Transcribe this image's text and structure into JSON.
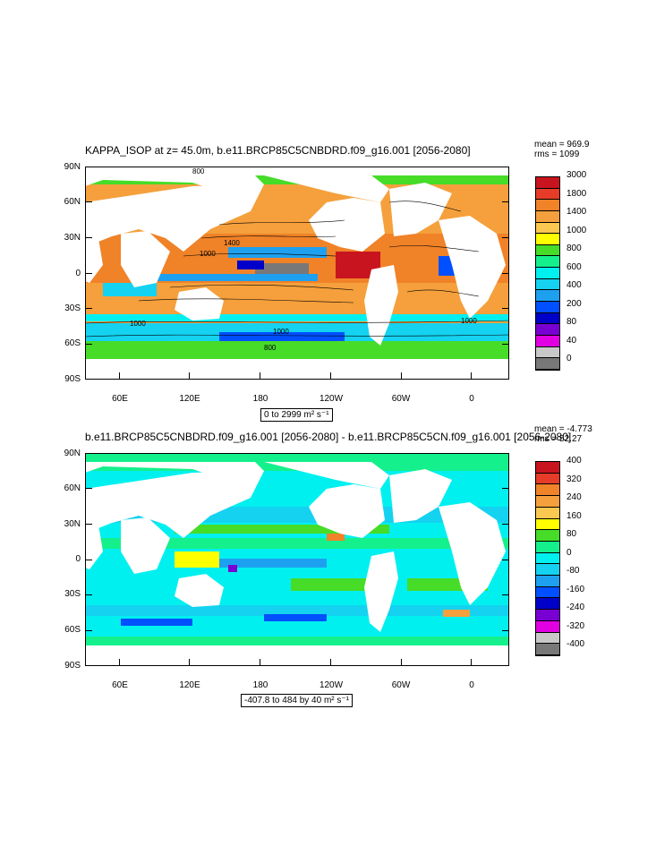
{
  "panels": [
    {
      "title": "KAPPA_ISOP at z=  45.0m, b.e11.BRCP85C5CNBDRD.f09_g16.001 [2056-2080]",
      "mean": "mean = 969.9",
      "rms": "rms = 1099",
      "range": "0 to 2999 m² s⁻¹",
      "lat_labels": [
        "90N",
        "60N",
        "30N",
        "0",
        "30S",
        "60S",
        "90S"
      ],
      "lon_labels": [
        "60E",
        "120E",
        "180",
        "120W",
        "60W",
        "0"
      ],
      "colorbar_labels": [
        "3000",
        "1800",
        "1400",
        "1000",
        "800",
        "600",
        "400",
        "200",
        "80",
        "40",
        "0"
      ],
      "colorbar_colors": [
        "#c8141e",
        "#e63c28",
        "#f08228",
        "#f5a03c",
        "#fac850",
        "#ffff00",
        "#46dc28",
        "#14f08c",
        "#00f0f0",
        "#14d2f0",
        "#1ea0f0",
        "#0050ff",
        "#0000c8",
        "#7800d2",
        "#e100e1",
        "#c8c8c8",
        "#787878"
      ],
      "contour_labels": [
        "800",
        "1400",
        "1000",
        "1000",
        "1000",
        "1000",
        "800"
      ]
    },
    {
      "title": "b.e11.BRCP85C5CNBDRD.f09_g16.001 [2056-2080] - b.e11.BRCP85C5CN.f09_g16.001 [2056-2080]",
      "mean": "mean = -4.773",
      "rms": "rms = 52.27",
      "range": "-407.8 to 484 by 40 m² s⁻¹",
      "lat_labels": [
        "90N",
        "60N",
        "30N",
        "0",
        "30S",
        "60S",
        "90S"
      ],
      "lon_labels": [
        "60E",
        "120E",
        "180",
        "120W",
        "60W",
        "0"
      ],
      "colorbar_labels": [
        "400",
        "320",
        "240",
        "160",
        "80",
        "0",
        "-80",
        "-160",
        "-240",
        "-320",
        "-400"
      ],
      "colorbar_colors": [
        "#c8141e",
        "#e63c28",
        "#f08228",
        "#f5a03c",
        "#fac850",
        "#ffff00",
        "#46dc28",
        "#14f08c",
        "#00f0f0",
        "#14d2f0",
        "#1ea0f0",
        "#0050ff",
        "#0000c8",
        "#7800d2",
        "#e100e1",
        "#c8c8c8",
        "#787878"
      ],
      "contour_labels": []
    }
  ]
}
